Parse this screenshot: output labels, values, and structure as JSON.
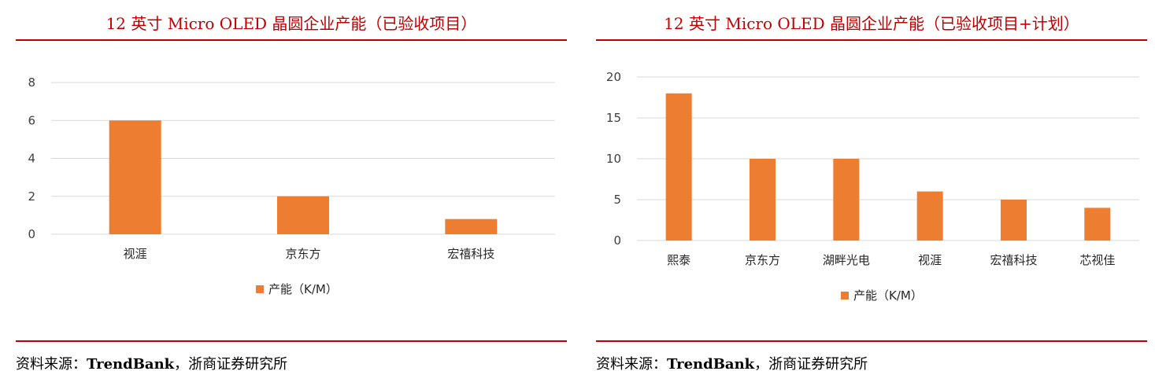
{
  "panels": [
    {
      "title": "12 英寸 Micro OLED 晶圆企业产能（已验收项目）",
      "source_prefix": "资料来源：",
      "source_bold": "TrendBank",
      "source_suffix": "，浙商证券研究所"
    },
    {
      "title": "12 英寸 Micro OLED 晶圆企业产能（已验收项目+计划）",
      "source_prefix": "资料来源：",
      "source_bold": "TrendBank",
      "source_suffix": "，浙商证券研究所"
    }
  ],
  "chart_data": [
    {
      "type": "bar",
      "title": "12 英寸 Micro OLED 晶圆企业产能（已验收项目）",
      "categories": [
        "视涯",
        "京东方",
        "宏禧科技"
      ],
      "series": [
        {
          "name": "产能（K/M）",
          "values": [
            6,
            2,
            0.8
          ],
          "color": "#ED7D31"
        }
      ],
      "ylim": [
        0,
        8
      ],
      "yticks": [
        0,
        2,
        4,
        6,
        8
      ],
      "grid": true,
      "legend": "bottom"
    },
    {
      "type": "bar",
      "title": "12 英寸 Micro OLED 晶圆企业产能（已验收项目+计划）",
      "categories": [
        "熙泰",
        "京东方",
        "湖畔光电",
        "视涯",
        "宏禧科技",
        "芯视佳"
      ],
      "series": [
        {
          "name": "产能（K/M）",
          "values": [
            18,
            10,
            10,
            6,
            5,
            4
          ],
          "color": "#ED7D31"
        }
      ],
      "ylim": [
        0,
        20
      ],
      "yticks": [
        0,
        5,
        10,
        15,
        20
      ],
      "grid": true,
      "legend": "bottom"
    }
  ]
}
